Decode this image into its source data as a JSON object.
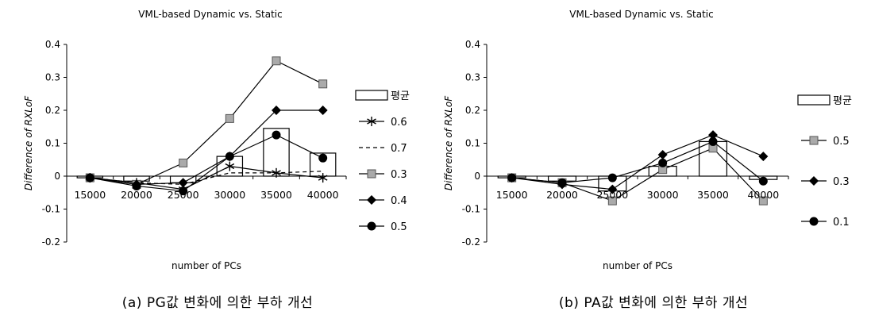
{
  "chart_data": [
    {
      "type": "line",
      "title": "VML-based Dynamic vs. Static",
      "xlabel": "number of PCs",
      "ylabel": "Difference of RXLoF",
      "categories": [
        "15000",
        "20000",
        "25000",
        "30000",
        "35000",
        "40000"
      ],
      "ylim": [
        -0.2,
        0.4
      ],
      "yticks": [
        "0.4",
        "0.3",
        "0.2",
        "0.1",
        "0",
        "-0.1",
        "-0.2"
      ],
      "legend_position": "right",
      "caption": "(a) PG값 변화에 의한 부하 개선",
      "bar_series": {
        "name": "평균",
        "values": [
          -0.005,
          -0.015,
          -0.02,
          0.06,
          0.145,
          0.07
        ]
      },
      "series": [
        {
          "name": "0.6",
          "marker": "star",
          "dash": "",
          "values": [
            -0.005,
            -0.02,
            -0.04,
            0.03,
            0.01,
            -0.005
          ]
        },
        {
          "name": "0.7",
          "marker": "none",
          "dash": "5,4",
          "values": [
            -0.005,
            -0.02,
            -0.025,
            0.01,
            0.01,
            0.015
          ]
        },
        {
          "name": "0.3",
          "marker": "square",
          "dash": "",
          "values": [
            -0.005,
            -0.025,
            0.04,
            0.175,
            0.35,
            0.28
          ]
        },
        {
          "name": "0.4",
          "marker": "diamond",
          "dash": "",
          "values": [
            -0.005,
            -0.025,
            -0.02,
            0.06,
            0.2,
            0.2
          ]
        },
        {
          "name": "0.5",
          "marker": "circle",
          "dash": "",
          "values": [
            -0.005,
            -0.03,
            -0.045,
            0.06,
            0.125,
            0.055
          ]
        }
      ]
    },
    {
      "type": "line",
      "title": "VML-based Dynamic vs. Static",
      "xlabel": "number of PCs",
      "ylabel": "Difference of RXLoF",
      "categories": [
        "15000",
        "20000",
        "25000",
        "30000",
        "35000",
        "40000"
      ],
      "ylim": [
        -0.2,
        0.4
      ],
      "yticks": [
        "0.4",
        "0.3",
        "0.2",
        "0.1",
        "0",
        "-0.1",
        "-0.2"
      ],
      "legend_position": "right",
      "caption": "(b) PA값 변화에 의한 부하 개선",
      "bar_series": {
        "name": "평균",
        "values": [
          -0.005,
          -0.015,
          -0.045,
          0.03,
          0.105,
          -0.01
        ]
      },
      "series": [
        {
          "name": "0.5",
          "marker": "square",
          "dash": "",
          "values": [
            -0.005,
            -0.02,
            -0.075,
            0.02,
            0.085,
            -0.075
          ]
        },
        {
          "name": "0.3",
          "marker": "diamond",
          "dash": "",
          "values": [
            -0.005,
            -0.025,
            -0.04,
            0.065,
            0.125,
            0.06
          ]
        },
        {
          "name": "0.1",
          "marker": "circle",
          "dash": "",
          "values": [
            -0.005,
            -0.02,
            -0.005,
            0.04,
            0.105,
            -0.015
          ]
        }
      ]
    }
  ],
  "colors": {
    "line": "#000000",
    "square_fill": "#aaaaaa",
    "bar_fill": "#ffffff",
    "axis": "#000000"
  }
}
